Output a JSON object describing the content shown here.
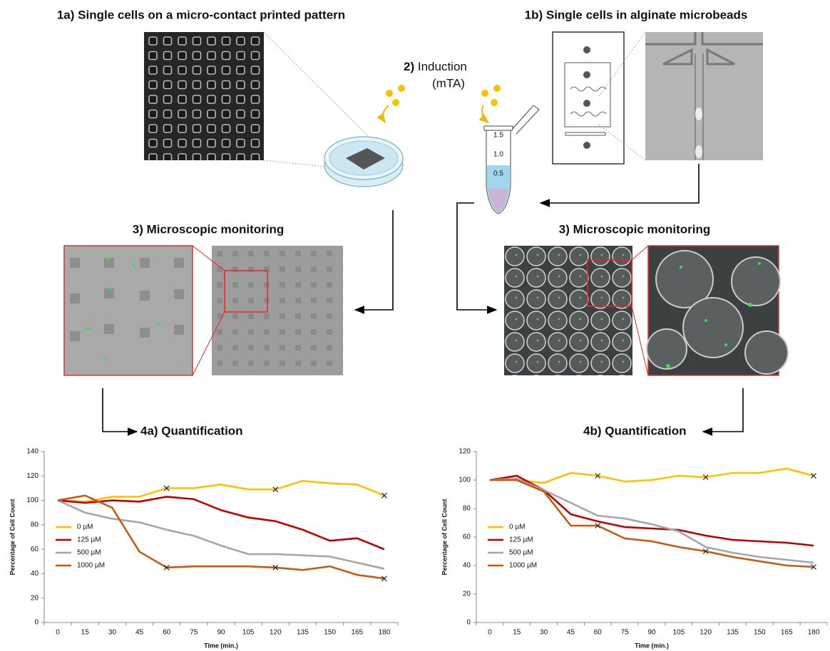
{
  "diagram": {
    "step_1a": "1a) Single cells on a micro-contact printed pattern",
    "step_1b": "1b) Single cells in alginate microbeads",
    "induction_step": "2)",
    "induction": "Induction",
    "induction_agent": "(mTA)",
    "tube_labels": [
      "1.5",
      "1.0",
      "0.5"
    ],
    "monitoring_a": "3) Microscopic monitoring",
    "monitoring_b": "3) Microscopic monitoring"
  },
  "chart_data": [
    {
      "type": "line",
      "title": "4a) Quantification",
      "x_label": "Time (min.)",
      "y_label": "Percentage of Cell Count",
      "categories": [
        "0",
        "15",
        "30",
        "45",
        "60",
        "75",
        "90",
        "105",
        "120",
        "135",
        "150",
        "165",
        "180"
      ],
      "ylim": [
        0,
        140
      ],
      "yticks": [
        0,
        20,
        40,
        60,
        80,
        100,
        120,
        140
      ],
      "legend": "lower left",
      "series": [
        {
          "name": "0 µM",
          "color": "#ffc000",
          "values": [
            100,
            99,
            103,
            103,
            110,
            110,
            113,
            109,
            109,
            116,
            114,
            113,
            104
          ],
          "markers": [
            "60",
            "120",
            "180"
          ]
        },
        {
          "name": "125 µM",
          "color": "#c00000",
          "values": [
            100,
            98,
            100,
            99,
            103,
            101,
            92,
            86,
            83,
            76,
            67,
            69,
            60
          ]
        },
        {
          "name": "500 µM",
          "color": "#a6a6a6",
          "values": [
            100,
            90,
            85,
            82,
            76,
            71,
            63,
            56,
            56,
            55,
            54,
            49,
            44
          ]
        },
        {
          "name": "1000 µM",
          "color": "#c55a11",
          "values": [
            100,
            104,
            94,
            58,
            45,
            46,
            46,
            46,
            45,
            43,
            46,
            39,
            36
          ],
          "markers": [
            "60",
            "120",
            "180"
          ]
        }
      ]
    },
    {
      "type": "line",
      "title": "4b) Quantification",
      "x_label": "Time (min.)",
      "y_label": "Percentage of Cell Count",
      "categories": [
        "0",
        "15",
        "30",
        "45",
        "60",
        "75",
        "90",
        "105",
        "120",
        "135",
        "150",
        "165",
        "180"
      ],
      "ylim": [
        0,
        120
      ],
      "yticks": [
        0,
        20,
        40,
        60,
        80,
        100,
        120
      ],
      "legend": "lower left",
      "series": [
        {
          "name": "0 µM",
          "color": "#ffc000",
          "values": [
            100,
            100,
            98,
            105,
            103,
            99,
            100,
            103,
            102,
            105,
            105,
            108,
            103
          ],
          "markers": [
            "60",
            "120",
            "180"
          ]
        },
        {
          "name": "125 µM",
          "color": "#c00000",
          "values": [
            100,
            103,
            93,
            76,
            71,
            67,
            66,
            65,
            61,
            58,
            57,
            56,
            54
          ]
        },
        {
          "name": "500 µM",
          "color": "#a6a6a6",
          "values": [
            100,
            101,
            93,
            84,
            75,
            73,
            69,
            64,
            53,
            49,
            46,
            44,
            42
          ]
        },
        {
          "name": "1000 µM",
          "color": "#c55a11",
          "values": [
            100,
            100,
            92,
            68,
            68,
            59,
            57,
            53,
            50,
            46,
            43,
            40,
            39
          ],
          "markers": [
            "60",
            "120",
            "180"
          ]
        }
      ]
    }
  ]
}
